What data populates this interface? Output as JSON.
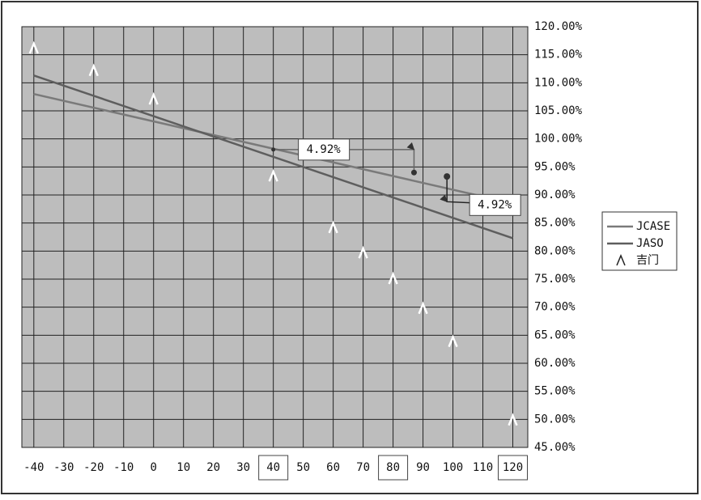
{
  "chart_data": {
    "type": "line",
    "xlim": [
      -44,
      125
    ],
    "xticks": [
      -40,
      -30,
      -20,
      -10,
      0,
      10,
      20,
      30,
      40,
      50,
      60,
      70,
      80,
      90,
      100,
      110,
      120
    ],
    "boxed_xticks": [
      40,
      80,
      120
    ],
    "ylim": [
      45,
      120
    ],
    "yticks": [
      {
        "value": 45,
        "label": "45.00%"
      },
      {
        "value": 50,
        "label": "50.00%"
      },
      {
        "value": 55,
        "label": "55.00%"
      },
      {
        "value": 60,
        "label": "60.00%"
      },
      {
        "value": 65,
        "label": "65.00%"
      },
      {
        "value": 70,
        "label": "70.00%"
      },
      {
        "value": 75,
        "label": "75.00%"
      },
      {
        "value": 80,
        "label": "80.00%"
      },
      {
        "value": 85,
        "label": "85.00%"
      },
      {
        "value": 90,
        "label": "90.00%"
      },
      {
        "value": 95,
        "label": "95.00%"
      },
      {
        "value": 100,
        "label": "100.00%"
      },
      {
        "value": 105,
        "label": "105.00%"
      },
      {
        "value": 110,
        "label": "110.00%"
      },
      {
        "value": 115,
        "label": "115.00%"
      },
      {
        "value": 120,
        "label": "120.00%"
      }
    ],
    "grid": true,
    "legend": "right",
    "series": [
      {
        "name": "JCASE",
        "color": "#7a7a7a",
        "x": [
          -40,
          120
        ],
        "values": [
          108,
          88.5
        ]
      },
      {
        "name": "JASO",
        "color": "#5e5e5e",
        "x": [
          -40,
          120
        ],
        "values": [
          111.3,
          82.3
        ]
      },
      {
        "name": "吉门",
        "color": "#ffffff",
        "marker": "^",
        "line": false,
        "x": [
          -40,
          -20,
          0,
          40,
          60,
          70,
          80,
          90,
          100,
          120
        ],
        "values": [
          116.1,
          112.1,
          107,
          93.3,
          84.1,
          79.6,
          75,
          69.7,
          63.8,
          49.8
        ]
      }
    ],
    "annotations": [
      {
        "label": "4.92%",
        "path": [
          [
            40,
            98.1
          ],
          [
            87,
            98.1
          ],
          [
            87,
            94
          ]
        ]
      },
      {
        "label": "4.92%",
        "path": [
          [
            98,
            93.3
          ],
          [
            98,
            88.8
          ],
          [
            118,
            88.3
          ]
        ]
      }
    ]
  }
}
